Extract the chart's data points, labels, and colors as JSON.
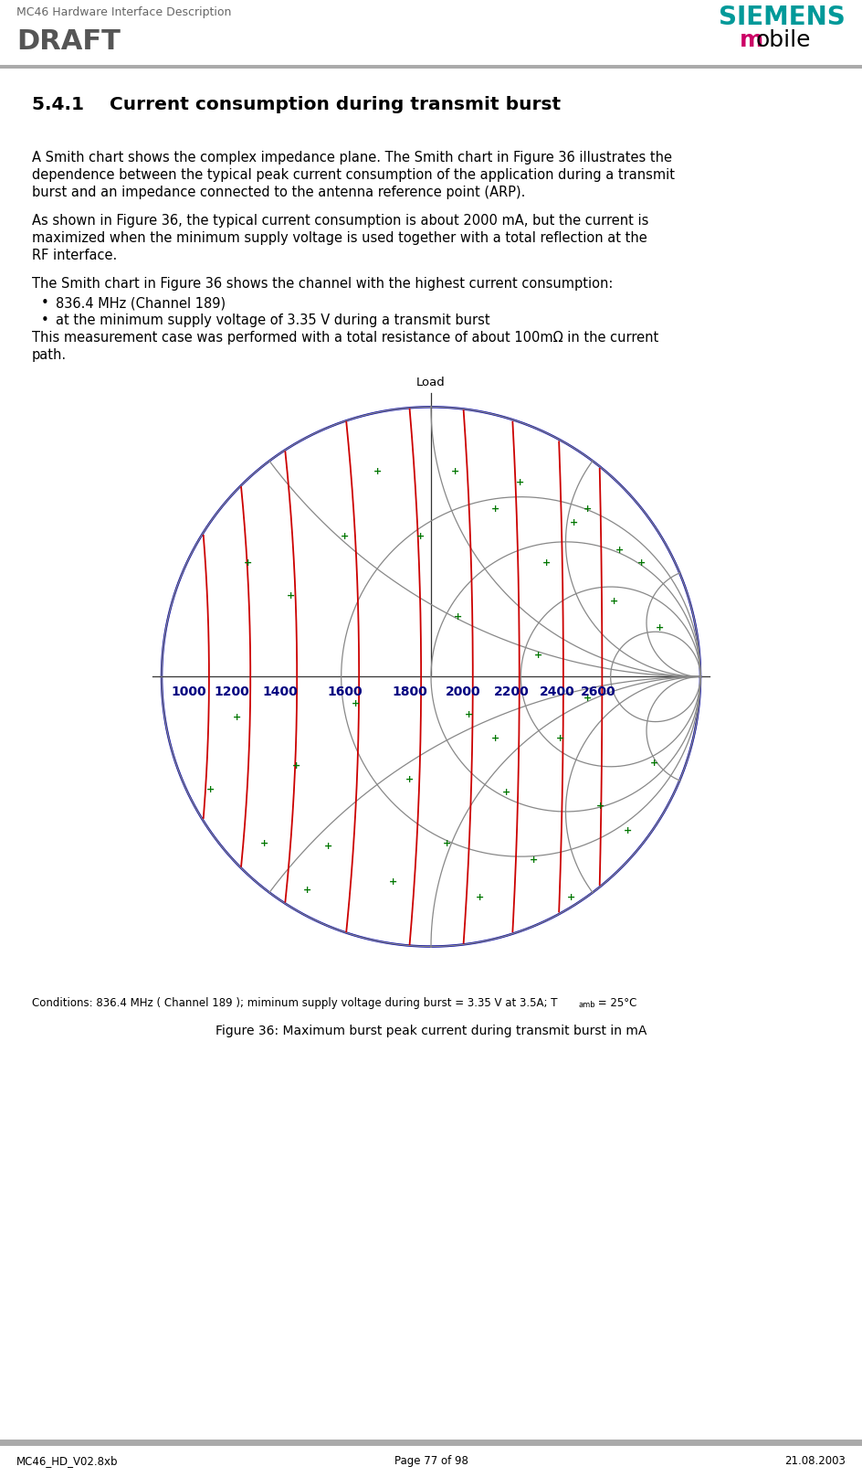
{
  "header_left_line1": "MC46 Hardware Interface Description",
  "header_left_line2": "DRAFT",
  "siemens_text": "SIEMENS",
  "mobile_text": "mobile",
  "siemens_color": "#009999",
  "mobile_m_color": "#cc0066",
  "header_line_color": "#aaaaaa",
  "footer_line_color": "#aaaaaa",
  "footer_left": "MC46_HD_V02.8xb",
  "footer_center": "Page 77 of 98",
  "footer_right": "21.08.2003",
  "section_title": "5.4.1    Current consumption during transmit burst",
  "para1_lines": [
    "A Smith chart shows the complex impedance plane. The Smith chart in Figure 36 illustrates the",
    "dependence between the typical peak current consumption of the application during a transmit",
    "burst and an impedance connected to the antenna reference point (ARP)."
  ],
  "para2_lines": [
    "As shown in Figure 36, the typical current consumption is about 2000 mA, but the current is",
    "maximized when the minimum supply voltage is used together with a total reflection at the",
    "RF interface."
  ],
  "para3": "The Smith chart in Figure 36 shows the channel with the highest current consumption:",
  "bullet1": "836.4 MHz (Channel 189)",
  "bullet2": "at the minimum supply voltage of 3.35 V during a transmit burst",
  "para4_lines": [
    "This measurement case was performed with a total resistance of about 100mΩ in the current",
    "path."
  ],
  "chart_label_top": "Load",
  "chart_labels": [
    "1000",
    "1200",
    "1400",
    "1600",
    "1800",
    "2000",
    "2200",
    "2400",
    "2600"
  ],
  "chart_label_color": "#000080",
  "conditions_text": "Conditions: 836.4 MHz ( Channel 189 ); miminum supply voltage during burst = 3.35 V at 3.5A; T",
  "conditions_amb": "amb",
  "conditions_end": " = 25°C",
  "figure_caption": "Figure 36: Maximum burst peak current during transmit burst in mA",
  "bg_color": "#ffffff",
  "text_color": "#000000",
  "gray_text_color": "#666666",
  "draft_color": "#555555"
}
